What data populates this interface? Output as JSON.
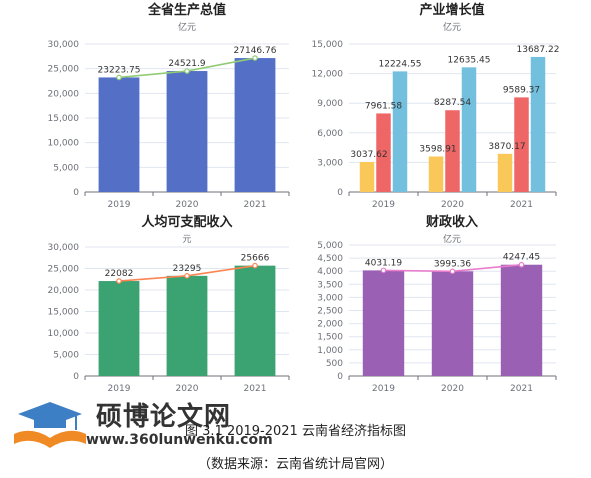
{
  "figure": {
    "caption": "图 3.1 2019-2021 云南省经济指标图",
    "source": "（数据来源：云南省统计局官网）"
  },
  "watermark": {
    "name": "硕博论文网",
    "url": "www.360lunwenku.com"
  },
  "colors": {
    "blue": "#5470c6",
    "green_line": "#91cc75",
    "yellow": "#fac858",
    "red": "#ee6666",
    "cyan": "#73c0de",
    "green_bar": "#3ba272",
    "orange_line": "#fc8452",
    "purple": "#9a60b4",
    "pink_line": "#ea7ccc",
    "axis": "#6e7079",
    "grid": "#e0e6f1"
  },
  "chart_data": [
    {
      "type": "bar",
      "title": "全省生产总值",
      "unit": "亿元",
      "categories": [
        "2019",
        "2020",
        "2021"
      ],
      "yticks": [
        "0",
        "5,000",
        "10,000",
        "15,000",
        "20,000",
        "25,000",
        "30,000"
      ],
      "ylim": [
        0,
        30000
      ],
      "series": [
        {
          "kind": "bar",
          "color": "#5470c6",
          "values": [
            23223.75,
            24521.9,
            27146.76
          ],
          "labels": [
            "23223.75",
            "24521.9",
            "27146.76"
          ]
        },
        {
          "kind": "line",
          "color": "#91cc75",
          "values": [
            23223.75,
            24521.9,
            27146.76
          ]
        }
      ]
    },
    {
      "type": "bar",
      "title": "产业增长值",
      "unit": "亿元",
      "categories": [
        "2019",
        "2020",
        "2021"
      ],
      "yticks": [
        "0",
        "3,000",
        "6,000",
        "9,000",
        "12,000",
        "15,000"
      ],
      "ylim": [
        0,
        15000
      ],
      "series": [
        {
          "kind": "bar",
          "color": "#fac858",
          "values": [
            3037.62,
            3598.91,
            3870.17
          ],
          "labels": [
            "3037.62",
            "3598.91",
            "3870.17"
          ]
        },
        {
          "kind": "bar",
          "color": "#ee6666",
          "values": [
            7961.58,
            8287.54,
            9589.37
          ],
          "labels": [
            "7961.58",
            "8287.54",
            "9589.37"
          ]
        },
        {
          "kind": "bar",
          "color": "#73c0de",
          "values": [
            12224.55,
            12635.45,
            13687.22
          ],
          "labels": [
            "12224.55",
            "12635.45",
            "13687.22"
          ]
        }
      ]
    },
    {
      "type": "bar",
      "title": "人均可支配收入",
      "unit": "元",
      "categories": [
        "2019",
        "2020",
        "2021"
      ],
      "yticks": [
        "0",
        "5,000",
        "10,000",
        "15,000",
        "20,000",
        "25,000",
        "30,000"
      ],
      "ylim": [
        0,
        30000
      ],
      "series": [
        {
          "kind": "bar",
          "color": "#3ba272",
          "values": [
            22082,
            23295,
            25666
          ],
          "labels": [
            "22082",
            "23295",
            "25666"
          ]
        },
        {
          "kind": "line",
          "color": "#fc8452",
          "values": [
            22082,
            23295,
            25666
          ]
        }
      ]
    },
    {
      "type": "bar",
      "title": "财政收入",
      "unit": "亿元",
      "categories": [
        "2019",
        "2020",
        "2021"
      ],
      "yticks": [
        "0",
        "500",
        "1,000",
        "1,500",
        "2,000",
        "2,500",
        "3,000",
        "3,500",
        "4,000",
        "4,500",
        "5,000"
      ],
      "ylim": [
        0,
        5000
      ],
      "series": [
        {
          "kind": "bar",
          "color": "#9a60b4",
          "values": [
            4031.19,
            3995.36,
            4247.45
          ],
          "labels": [
            "4031.19",
            "3995.36",
            "4247.45"
          ]
        },
        {
          "kind": "line",
          "color": "#ea7ccc",
          "values": [
            4031.19,
            3995.36,
            4247.45
          ]
        }
      ]
    }
  ]
}
